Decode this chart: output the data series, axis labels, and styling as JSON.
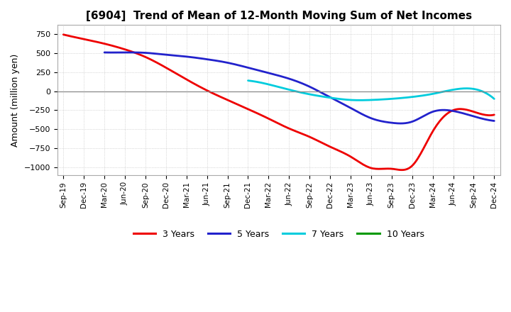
{
  "title": "[6904]  Trend of Mean of 12-Month Moving Sum of Net Incomes",
  "ylabel": "Amount (million yen)",
  "background_color": "#ffffff",
  "grid_color": "#bbbbbb",
  "x_labels": [
    "Sep-19",
    "Dec-19",
    "Mar-20",
    "Jun-20",
    "Sep-20",
    "Dec-20",
    "Mar-21",
    "Jun-21",
    "Sep-21",
    "Dec-21",
    "Mar-22",
    "Jun-22",
    "Sep-22",
    "Dec-22",
    "Mar-23",
    "Jun-23",
    "Sep-23",
    "Dec-23",
    "Mar-24",
    "Jun-24",
    "Sep-24",
    "Dec-24"
  ],
  "ylim": [
    -1100,
    870
  ],
  "yticks": [
    -1000,
    -750,
    -500,
    -250,
    0,
    250,
    500,
    750
  ],
  "series": {
    "3 Years": {
      "color": "#ee0000",
      "data_x": [
        0,
        1,
        2,
        3,
        4,
        5,
        6,
        7,
        8,
        9,
        10,
        11,
        12,
        13,
        14,
        15,
        16,
        17,
        18,
        19,
        20,
        21
      ],
      "data_y": [
        745,
        685,
        625,
        550,
        450,
        310,
        155,
        10,
        -115,
        -235,
        -360,
        -490,
        -600,
        -730,
        -860,
        -1010,
        -1020,
        -980,
        -530,
        -250,
        -270,
        -310
      ]
    },
    "5 Years": {
      "color": "#2222cc",
      "data_x": [
        2,
        3,
        4,
        5,
        6,
        7,
        8,
        9,
        10,
        11,
        12,
        13,
        14,
        15,
        16,
        17,
        18,
        19,
        20,
        21
      ],
      "data_y": [
        510,
        510,
        505,
        480,
        455,
        420,
        375,
        310,
        240,
        165,
        60,
        -80,
        -220,
        -355,
        -415,
        -400,
        -270,
        -260,
        -330,
        -390
      ]
    },
    "7 Years": {
      "color": "#00ccdd",
      "data_x": [
        9,
        10,
        11,
        12,
        13,
        14,
        15,
        16,
        17,
        18,
        19,
        20,
        21
      ],
      "data_y": [
        140,
        90,
        20,
        -40,
        -85,
        -115,
        -115,
        -100,
        -75,
        -35,
        20,
        30,
        -100
      ]
    },
    "10 Years": {
      "color": "#009900",
      "data_x": [],
      "data_y": []
    }
  },
  "legend_entries": [
    "3 Years",
    "5 Years",
    "7 Years",
    "10 Years"
  ],
  "legend_colors": [
    "#ee0000",
    "#2222cc",
    "#00ccdd",
    "#009900"
  ]
}
